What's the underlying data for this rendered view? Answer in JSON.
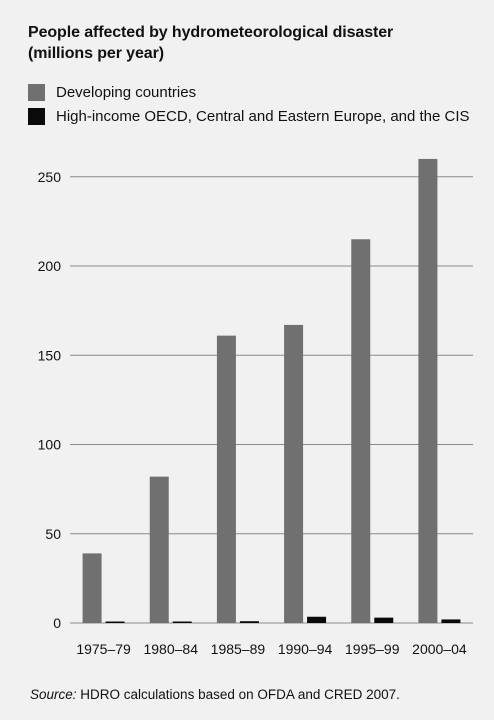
{
  "header": {
    "title_line1": "People affected by hydrometeorological disaster",
    "title_line2": "(millions  per year)"
  },
  "colors": {
    "developing": "#707070",
    "high_income": "#0a0a0a",
    "grid": "#8a8a8a",
    "background": "#f1f1f1"
  },
  "chart_data": {
    "type": "bar",
    "title": "People affected by hydrometeorological disaster (millions  per year)",
    "categories": [
      "1975–79",
      "1980–84",
      "1985–89",
      "1990–94",
      "1995–99",
      "2000–04"
    ],
    "series": [
      {
        "name": "Developing countries",
        "values": [
          39,
          82,
          161,
          167,
          215,
          260
        ]
      },
      {
        "name": "High-income OECD, Central and Eastern Europe, and the CIS",
        "values": [
          0.3,
          0.4,
          1.0,
          3.5,
          3.0,
          2.0
        ]
      }
    ],
    "yticks": [
      0,
      50,
      100,
      150,
      200,
      250
    ],
    "ylim": [
      0,
      265
    ],
    "grid": true,
    "legend_position": "top-left",
    "xlabel": "",
    "ylabel": ""
  },
  "footer": {
    "source_label": "Source:",
    "source_text": " HDRO calculations based on OFDA and CRED 2007."
  }
}
